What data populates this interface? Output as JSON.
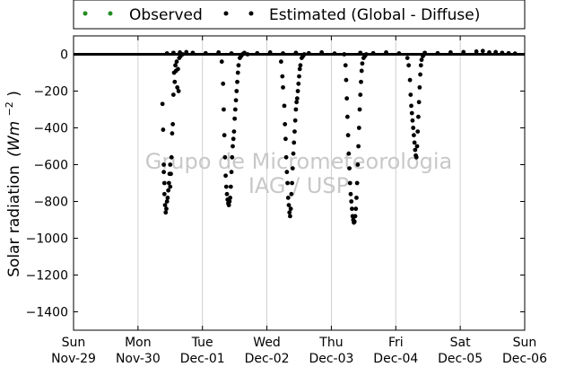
{
  "chart_data": {
    "type": "scatter",
    "title": "",
    "ylabel": "Solar radiation (Wm⁻²)",
    "ylabel_text": "Solar radiation",
    "ylabel_units": "(Wm",
    "ylabel_exp": "−2",
    "ylabel_close": ")",
    "xlabel": "",
    "xlim_days": [
      0,
      7
    ],
    "ylim": [
      -1500,
      100
    ],
    "grid": "vertical",
    "legend": {
      "placement": "top",
      "entries": [
        {
          "label": "Observed",
          "color": "#228b22",
          "marker": "dot"
        },
        {
          "label": "Estimated (Global - Diffuse)",
          "color": "#000000",
          "marker": "dot"
        }
      ]
    },
    "watermark": [
      "Grupo de Micrometeorologia",
      "IAG / USP"
    ],
    "x_ticks": [
      {
        "day": 0,
        "line1": "Sun",
        "line2": "Nov-29"
      },
      {
        "day": 1,
        "line1": "Mon",
        "line2": "Nov-30"
      },
      {
        "day": 2,
        "line1": "Tue",
        "line2": "Dec-01"
      },
      {
        "day": 3,
        "line1": "Wed",
        "line2": "Dec-02"
      },
      {
        "day": 4,
        "line1": "Thu",
        "line2": "Dec-03"
      },
      {
        "day": 5,
        "line1": "Fri",
        "line2": "Dec-04"
      },
      {
        "day": 6,
        "line1": "Sat",
        "line2": "Dec-05"
      },
      {
        "day": 7,
        "line1": "Sun",
        "line2": "Dec-06"
      }
    ],
    "y_ticks": [
      0,
      -200,
      -400,
      -600,
      -800,
      -1000,
      -1200,
      -1400
    ],
    "series": [
      {
        "name": "Estimated (Global - Diffuse)",
        "color": "#000000",
        "baseline_value": 0,
        "points": [
          [
            1.38,
            -270
          ],
          [
            1.39,
            -410
          ],
          [
            1.4,
            -600
          ],
          [
            1.4,
            -640
          ],
          [
            1.41,
            -700
          ],
          [
            1.41,
            -760
          ],
          [
            1.42,
            -820
          ],
          [
            1.43,
            -860
          ],
          [
            1.44,
            -840
          ],
          [
            1.45,
            -800
          ],
          [
            1.46,
            -780
          ],
          [
            1.47,
            -740
          ],
          [
            1.48,
            -700
          ],
          [
            1.49,
            -650
          ],
          [
            1.5,
            -600
          ],
          [
            1.5,
            -720
          ],
          [
            1.51,
            -650
          ],
          [
            1.52,
            -560
          ],
          [
            1.53,
            -430
          ],
          [
            1.54,
            -380
          ],
          [
            1.55,
            -220
          ],
          [
            1.56,
            -100
          ],
          [
            1.57,
            -150
          ],
          [
            1.58,
            -60
          ],
          [
            1.59,
            -90
          ],
          [
            1.6,
            -40
          ],
          [
            1.61,
            -180
          ],
          [
            1.62,
            -80
          ],
          [
            1.63,
            -200
          ],
          [
            1.64,
            -20
          ],
          [
            1.66,
            -10
          ],
          [
            1.69,
            0
          ],
          [
            2.3,
            -40
          ],
          [
            2.32,
            -160
          ],
          [
            2.33,
            -300
          ],
          [
            2.34,
            -440
          ],
          [
            2.35,
            -560
          ],
          [
            2.36,
            -660
          ],
          [
            2.37,
            -720
          ],
          [
            2.38,
            -760
          ],
          [
            2.39,
            -790
          ],
          [
            2.4,
            -810
          ],
          [
            2.41,
            -820
          ],
          [
            2.42,
            -800
          ],
          [
            2.43,
            -780
          ],
          [
            2.44,
            -720
          ],
          [
            2.45,
            -640
          ],
          [
            2.46,
            -560
          ],
          [
            2.47,
            -500
          ],
          [
            2.48,
            -460
          ],
          [
            2.49,
            -420
          ],
          [
            2.5,
            -350
          ],
          [
            2.51,
            -300
          ],
          [
            2.52,
            -250
          ],
          [
            2.53,
            -200
          ],
          [
            2.54,
            -150
          ],
          [
            2.55,
            -100
          ],
          [
            2.56,
            -60
          ],
          [
            2.58,
            -20
          ],
          [
            2.6,
            -10
          ],
          [
            2.62,
            0
          ],
          [
            2.7,
            0
          ],
          [
            3.22,
            -40
          ],
          [
            3.24,
            -120
          ],
          [
            3.25,
            -180
          ],
          [
            3.27,
            -280
          ],
          [
            3.28,
            -380
          ],
          [
            3.29,
            -460
          ],
          [
            3.3,
            -560
          ],
          [
            3.31,
            -640
          ],
          [
            3.32,
            -700
          ],
          [
            3.33,
            -780
          ],
          [
            3.34,
            -820
          ],
          [
            3.35,
            -860
          ],
          [
            3.36,
            -880
          ],
          [
            3.37,
            -840
          ],
          [
            3.38,
            -760
          ],
          [
            3.39,
            -700
          ],
          [
            3.4,
            -620
          ],
          [
            3.41,
            -540
          ],
          [
            3.42,
            -480
          ],
          [
            3.43,
            -420
          ],
          [
            3.44,
            -360
          ],
          [
            3.45,
            -300
          ],
          [
            3.46,
            -260
          ],
          [
            3.47,
            -240
          ],
          [
            3.48,
            -200
          ],
          [
            3.49,
            -160
          ],
          [
            3.5,
            -120
          ],
          [
            3.51,
            -80
          ],
          [
            3.52,
            -60
          ],
          [
            3.54,
            -20
          ],
          [
            3.56,
            -10
          ],
          [
            3.58,
            0
          ],
          [
            4.2,
            0
          ],
          [
            4.22,
            -60
          ],
          [
            4.23,
            -140
          ],
          [
            4.24,
            -240
          ],
          [
            4.25,
            -340
          ],
          [
            4.26,
            -440
          ],
          [
            4.27,
            -540
          ],
          [
            4.28,
            -620
          ],
          [
            4.29,
            -700
          ],
          [
            4.3,
            -760
          ],
          [
            4.31,
            -800
          ],
          [
            4.32,
            -840
          ],
          [
            4.33,
            -880
          ],
          [
            4.34,
            -900
          ],
          [
            4.35,
            -915
          ],
          [
            4.36,
            -910
          ],
          [
            4.37,
            -880
          ],
          [
            4.38,
            -840
          ],
          [
            4.39,
            -780
          ],
          [
            4.4,
            -700
          ],
          [
            4.41,
            -600
          ],
          [
            4.42,
            -500
          ],
          [
            4.43,
            -400
          ],
          [
            4.44,
            -300
          ],
          [
            4.45,
            -220
          ],
          [
            4.46,
            -150
          ],
          [
            4.47,
            -90
          ],
          [
            4.48,
            -50
          ],
          [
            4.5,
            -20
          ],
          [
            4.52,
            -10
          ],
          [
            4.54,
            0
          ],
          [
            5.18,
            -20
          ],
          [
            5.2,
            -60
          ],
          [
            5.22,
            -140
          ],
          [
            5.23,
            -220
          ],
          [
            5.24,
            -280
          ],
          [
            5.25,
            -320
          ],
          [
            5.26,
            -360
          ],
          [
            5.27,
            -400
          ],
          [
            5.28,
            -440
          ],
          [
            5.29,
            -480
          ],
          [
            5.3,
            -520
          ],
          [
            5.31,
            -550
          ],
          [
            5.32,
            -560
          ],
          [
            5.33,
            -500
          ],
          [
            5.34,
            -420
          ],
          [
            5.35,
            -340
          ],
          [
            5.36,
            -260
          ],
          [
            5.37,
            -180
          ],
          [
            5.38,
            -110
          ],
          [
            5.39,
            -60
          ],
          [
            5.4,
            -30
          ],
          [
            5.42,
            -10
          ],
          [
            5.44,
            0
          ],
          [
            1.45,
            5
          ],
          [
            1.55,
            8
          ],
          [
            1.65,
            10
          ],
          [
            1.75,
            12
          ],
          [
            1.85,
            8
          ],
          [
            2.05,
            6
          ],
          [
            2.25,
            10
          ],
          [
            2.45,
            5
          ],
          [
            2.65,
            8
          ],
          [
            2.85,
            6
          ],
          [
            3.05,
            10
          ],
          [
            3.25,
            5
          ],
          [
            3.45,
            8
          ],
          [
            3.65,
            6
          ],
          [
            3.85,
            10
          ],
          [
            4.05,
            4
          ],
          [
            4.45,
            8
          ],
          [
            4.65,
            6
          ],
          [
            4.85,
            10
          ],
          [
            5.05,
            5
          ],
          [
            5.45,
            8
          ],
          [
            5.65,
            6
          ],
          [
            5.85,
            10
          ],
          [
            6.05,
            12
          ],
          [
            6.25,
            15
          ],
          [
            6.35,
            18
          ],
          [
            6.45,
            10
          ],
          [
            6.55,
            12
          ],
          [
            6.65,
            8
          ],
          [
            6.75,
            6
          ],
          [
            6.85,
            4
          ]
        ]
      }
    ]
  }
}
